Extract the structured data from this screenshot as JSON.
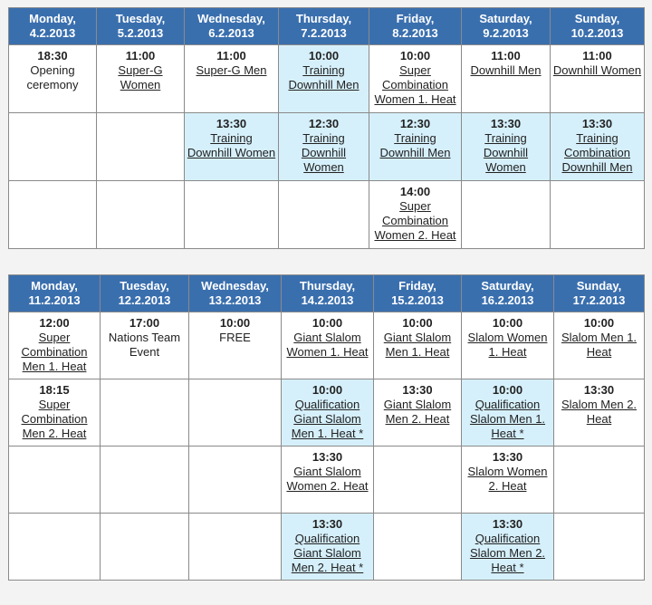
{
  "table1": {
    "headers": [
      [
        "Monday,",
        "4.2.2013"
      ],
      [
        "Tuesday,",
        "5.2.2013"
      ],
      [
        "Wednesday,",
        "6.2.2013"
      ],
      [
        "Thursday,",
        "7.2.2013"
      ],
      [
        "Friday,",
        "8.2.2013"
      ],
      [
        "Saturday,",
        "9.2.2013"
      ],
      [
        "Sunday,",
        "10.2.2013"
      ]
    ],
    "rows": [
      [
        {
          "time": "18:30",
          "event": "Opening ceremony",
          "link": false,
          "hl": false
        },
        {
          "time": "11:00",
          "event": "Super-G Women",
          "link": true,
          "hl": false
        },
        {
          "time": "11:00",
          "event": "Super-G Men",
          "link": true,
          "hl": false
        },
        {
          "time": "10:00",
          "event": "Training Downhill Men",
          "link": true,
          "hl": true
        },
        {
          "time": "10:00",
          "event": "Super Combination Women 1. Heat",
          "link": true,
          "hl": false
        },
        {
          "time": "11:00",
          "event": "Downhill Men",
          "link": true,
          "hl": false
        },
        {
          "time": "11:00",
          "event": "Downhill Women",
          "link": true,
          "hl": false
        }
      ],
      [
        {},
        {},
        {
          "time": "13:30",
          "event": "Training Downhill Women",
          "link": true,
          "hl": true
        },
        {
          "time": "12:30",
          "event": "Training Downhill Women",
          "link": true,
          "hl": true
        },
        {
          "time": "12:30",
          "event": "Training Downhill Men",
          "link": true,
          "hl": true
        },
        {
          "time": "13:30",
          "event": "Training Downhill Women",
          "link": true,
          "hl": true
        },
        {
          "time": "13:30",
          "event": "Training Combination Downhill Men",
          "link": true,
          "hl": true
        }
      ],
      [
        {},
        {},
        {},
        {},
        {
          "time": "14:00",
          "event": "Super Combination Women 2. Heat",
          "link": true,
          "hl": false
        },
        {},
        {}
      ]
    ]
  },
  "table2": {
    "headers": [
      [
        "Monday,",
        "11.2.2013"
      ],
      [
        "Tuesday,",
        "12.2.2013"
      ],
      [
        "Wednesday,",
        "13.2.2013"
      ],
      [
        "Thursday,",
        "14.2.2013"
      ],
      [
        "Friday,",
        "15.2.2013"
      ],
      [
        "Saturday,",
        "16.2.2013"
      ],
      [
        "Sunday,",
        "17.2.2013"
      ]
    ],
    "rows": [
      [
        {
          "time": "12:00",
          "event": "Super Combination Men 1. Heat",
          "link": true,
          "hl": false
        },
        {
          "time": "17:00",
          "event": "Nations Team Event",
          "link": false,
          "hl": false
        },
        {
          "time": "10:00",
          "event": "FREE",
          "link": false,
          "hl": false
        },
        {
          "time": "10:00",
          "event": "Giant Slalom Women 1. Heat",
          "link": true,
          "hl": false
        },
        {
          "time": "10:00",
          "event": "Giant Slalom Men 1. Heat",
          "link": true,
          "hl": false
        },
        {
          "time": "10:00",
          "event": "Slalom Women 1. Heat",
          "link": true,
          "hl": false
        },
        {
          "time": "10:00",
          "event": "Slalom Men 1. Heat",
          "link": true,
          "hl": false
        }
      ],
      [
        {
          "time": "18:15",
          "event": "Super Combination Men 2. Heat",
          "link": true,
          "hl": false
        },
        {},
        {},
        {
          "time": "10:00",
          "event": "Qualification Giant Slalom Men 1. Heat *",
          "link": true,
          "hl": true
        },
        {
          "time": "13:30",
          "event": "Giant Slalom Men 2. Heat",
          "link": true,
          "hl": false
        },
        {
          "time": "10:00",
          "event": "Qualification Slalom Men 1. Heat *",
          "link": true,
          "hl": true
        },
        {
          "time": "13:30",
          "event": "Slalom Men 2. Heat",
          "link": true,
          "hl": false
        }
      ],
      [
        {},
        {},
        {},
        {
          "time": "13:30",
          "event": "Giant Slalom Women 2. Heat",
          "link": true,
          "hl": false
        },
        {},
        {
          "time": "13:30",
          "event": "Slalom Women 2. Heat",
          "link": true,
          "hl": false
        },
        {}
      ],
      [
        {},
        {},
        {},
        {
          "time": "13:30",
          "event": "Qualification Giant Slalom Men 2. Heat *",
          "link": true,
          "hl": true
        },
        {},
        {
          "time": "13:30",
          "event": "Qualification Slalom Men 2. Heat *",
          "link": true,
          "hl": true
        },
        {}
      ]
    ]
  }
}
